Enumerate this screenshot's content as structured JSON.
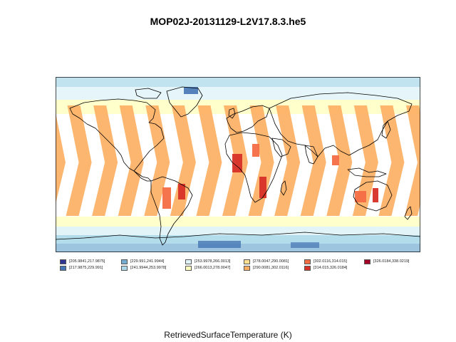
{
  "title": "MOP02J-20131129-L2V17.8.3.he5",
  "xlabel": "RetrievedSurfaceTemperature (K)",
  "legend": [
    {
      "label": "[205.9841,217.9875]",
      "color": "#313695"
    },
    {
      "label": "[217.9875,229.991]",
      "color": "#4575b4"
    },
    {
      "label": "[229.991,241.9944]",
      "color": "#74add1"
    },
    {
      "label": "[241.9944,253.9978]",
      "color": "#abd9e9"
    },
    {
      "label": "[253.9978,266.0013]",
      "color": "#e0f3f8"
    },
    {
      "label": "[266.0013,278.0047]",
      "color": "#ffffbf"
    },
    {
      "label": "[278.0047,290.0081]",
      "color": "#fee090"
    },
    {
      "label": "[290.0081,302.0116]",
      "color": "#fdae61"
    },
    {
      "label": "[302.0116,314.015]",
      "color": "#f46d43"
    },
    {
      "label": "[314.015,326.0184]",
      "color": "#d73027"
    },
    {
      "label": "[326.0184,338.0219]",
      "color": "#a50026"
    }
  ],
  "map": {
    "projection": "equirectangular",
    "coastlines": true,
    "swath_count": 14
  }
}
